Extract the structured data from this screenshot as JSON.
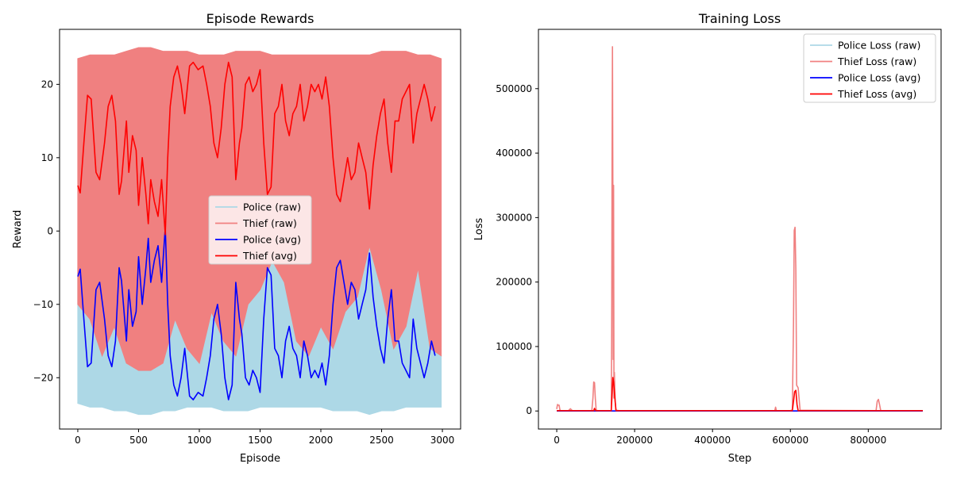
{
  "chart_data": [
    {
      "type": "line",
      "title": "Episode Rewards",
      "xlabel": "Episode",
      "ylabel": "Reward",
      "xlim": [
        -150,
        3150
      ],
      "ylim": [
        -27,
        27.5
      ],
      "xticks": [
        0,
        500,
        1000,
        1500,
        2000,
        2500,
        3000
      ],
      "yticks": [
        -20,
        -10,
        0,
        10,
        20
      ],
      "legend": {
        "placement": "center"
      },
      "series": [
        {
          "name": "Police (raw)",
          "color": "#add8e6",
          "style": "raw",
          "x": [
            0,
            100,
            200,
            300,
            400,
            500,
            600,
            700,
            800,
            900,
            1000,
            1100,
            1200,
            1300,
            1400,
            1500,
            1600,
            1700,
            1800,
            1900,
            2000,
            2100,
            2200,
            2300,
            2400,
            2500,
            2600,
            2700,
            2800,
            2900,
            2990
          ],
          "lower": [
            -23.5,
            -24,
            -24,
            -24.5,
            -24.5,
            -25,
            -25,
            -24.5,
            -24.5,
            -24,
            -24,
            -24,
            -24.5,
            -24.5,
            -24.5,
            -24,
            -24,
            -24,
            -24,
            -24,
            -24,
            -24.5,
            -24.5,
            -24.5,
            -25,
            -24.5,
            -24.5,
            -24,
            -24,
            -24,
            -24
          ],
          "upper": [
            -5,
            -12,
            -7,
            -6,
            -5,
            -3,
            -4,
            3,
            -8,
            -16,
            -18,
            -11,
            -15,
            -17,
            -10,
            -8,
            -4,
            -7,
            -15,
            -17,
            -13,
            -16,
            -11,
            -9,
            -2,
            -8,
            -16,
            -13,
            -5,
            -16,
            -17
          ]
        },
        {
          "name": "Thief (raw)",
          "color": "#f08080",
          "style": "raw",
          "x": [
            0,
            100,
            200,
            300,
            400,
            500,
            600,
            700,
            800,
            900,
            1000,
            1100,
            1200,
            1300,
            1400,
            1500,
            1600,
            1700,
            1800,
            1900,
            2000,
            2100,
            2200,
            2300,
            2400,
            2500,
            2600,
            2700,
            2800,
            2900,
            2990
          ],
          "lower": [
            -10,
            -12,
            -17,
            -13,
            -18,
            -19,
            -19,
            -18,
            -12,
            -16,
            -18,
            -11,
            -15,
            -17,
            -10,
            -8,
            -4,
            -7,
            -15,
            -17,
            -13,
            -16,
            -11,
            -9,
            -2,
            -8,
            -16,
            -13,
            -5,
            -16,
            -17
          ],
          "upper": [
            23.5,
            24,
            24,
            24,
            24.5,
            25,
            25,
            24.5,
            24.5,
            24.5,
            24,
            24,
            24,
            24.5,
            24.5,
            24.5,
            24,
            24,
            24,
            24,
            24,
            24,
            24,
            24,
            24,
            24.5,
            24.5,
            24.5,
            24,
            24,
            23.5
          ]
        },
        {
          "name": "Police (avg)",
          "color": "#0000ff",
          "style": "line",
          "x": [
            0,
            20,
            50,
            80,
            110,
            150,
            180,
            220,
            250,
            280,
            310,
            340,
            360,
            400,
            420,
            450,
            480,
            500,
            530,
            560,
            580,
            600,
            630,
            660,
            690,
            720,
            740,
            760,
            790,
            820,
            850,
            880,
            920,
            950,
            990,
            1030,
            1060,
            1090,
            1120,
            1150,
            1180,
            1210,
            1240,
            1270,
            1300,
            1330,
            1350,
            1380,
            1410,
            1440,
            1470,
            1500,
            1530,
            1560,
            1590,
            1620,
            1650,
            1680,
            1710,
            1740,
            1770,
            1800,
            1830,
            1860,
            1890,
            1920,
            1950,
            1980,
            2010,
            2040,
            2070,
            2100,
            2130,
            2160,
            2190,
            2220,
            2250,
            2280,
            2310,
            2340,
            2370,
            2400,
            2430,
            2460,
            2490,
            2520,
            2550,
            2580,
            2610,
            2640,
            2670,
            2700,
            2730,
            2760,
            2790,
            2820,
            2850,
            2880,
            2910,
            2940
          ],
          "y": [
            -6.2,
            -5.2,
            -12,
            -18.5,
            -18,
            -8,
            -7,
            -12,
            -17,
            -18.5,
            -15,
            -5,
            -6.8,
            -15,
            -8,
            -13,
            -11,
            -3.5,
            -10,
            -5,
            -1,
            -7,
            -4,
            -2,
            -7,
            0.5,
            -10,
            -17,
            -21,
            -22.5,
            -20,
            -16,
            -22.5,
            -23,
            -22,
            -22.5,
            -20,
            -17,
            -12,
            -10,
            -14,
            -20,
            -23,
            -21,
            -7,
            -12,
            -14,
            -20,
            -21,
            -19,
            -20,
            -22,
            -12,
            -5,
            -6,
            -16,
            -17,
            -20,
            -15,
            -13,
            -16,
            -17,
            -20,
            -15,
            -17,
            -20,
            -19,
            -20,
            -18,
            -21,
            -17,
            -10,
            -5,
            -4,
            -7,
            -10,
            -7,
            -8,
            -12,
            -10,
            -8,
            -3,
            -9,
            -13,
            -16,
            -18,
            -12,
            -8,
            -15,
            -15,
            -18,
            -19,
            -20,
            -12,
            -16,
            -18,
            -20,
            -18,
            -15,
            -17
          ]
        },
        {
          "name": "Thief (avg)",
          "color": "#ff0000",
          "style": "line",
          "x": [
            0,
            20,
            50,
            80,
            110,
            150,
            180,
            220,
            250,
            280,
            310,
            340,
            360,
            400,
            420,
            450,
            480,
            500,
            530,
            560,
            580,
            600,
            630,
            660,
            690,
            720,
            740,
            760,
            790,
            820,
            850,
            880,
            920,
            950,
            990,
            1030,
            1060,
            1090,
            1120,
            1150,
            1180,
            1210,
            1240,
            1270,
            1300,
            1330,
            1350,
            1380,
            1410,
            1440,
            1470,
            1500,
            1530,
            1560,
            1590,
            1620,
            1650,
            1680,
            1710,
            1740,
            1770,
            1800,
            1830,
            1860,
            1890,
            1920,
            1950,
            1980,
            2010,
            2040,
            2070,
            2100,
            2130,
            2160,
            2190,
            2220,
            2250,
            2280,
            2310,
            2340,
            2370,
            2400,
            2430,
            2460,
            2490,
            2520,
            2550,
            2580,
            2610,
            2640,
            2670,
            2700,
            2730,
            2760,
            2790,
            2820,
            2850,
            2880,
            2910,
            2940
          ],
          "y": [
            6.2,
            5.2,
            12,
            18.5,
            18,
            8,
            7,
            12,
            17,
            18.5,
            15,
            5,
            6.8,
            15,
            8,
            13,
            11,
            3.5,
            10,
            5,
            1,
            7,
            4,
            2,
            7,
            -0.5,
            10,
            17,
            21,
            22.5,
            20,
            16,
            22.5,
            23,
            22,
            22.5,
            20,
            17,
            12,
            10,
            14,
            20,
            23,
            21,
            7,
            12,
            14,
            20,
            21,
            19,
            20,
            22,
            12,
            5,
            6,
            16,
            17,
            20,
            15,
            13,
            16,
            17,
            20,
            15,
            17,
            20,
            19,
            20,
            18,
            21,
            17,
            10,
            5,
            4,
            7,
            10,
            7,
            8,
            12,
            10,
            8,
            3,
            9,
            13,
            16,
            18,
            12,
            8,
            15,
            15,
            18,
            19,
            20,
            12,
            16,
            18,
            20,
            18,
            15,
            17
          ]
        }
      ]
    },
    {
      "type": "line",
      "title": "Training Loss",
      "xlabel": "Step",
      "ylabel": "Loss",
      "xlim": [
        -47000,
        987000
      ],
      "ylim": [
        -28000,
        592000
      ],
      "xticks": [
        0,
        200000,
        400000,
        600000,
        800000
      ],
      "yticks": [
        0,
        100000,
        200000,
        300000,
        400000,
        500000
      ],
      "legend": {
        "placement": "top-right"
      },
      "series": [
        {
          "name": "Police Loss (raw)",
          "color": "#add8e6",
          "style": "line",
          "x": [
            0,
            940000
          ],
          "y": [
            0,
            0
          ]
        },
        {
          "name": "Thief Loss (raw)",
          "color": "#f08080",
          "style": "line",
          "x": [
            0,
            2000,
            4000,
            6000,
            8000,
            10000,
            30000,
            35000,
            40000,
            90000,
            93000,
            95000,
            97000,
            99000,
            101000,
            103000,
            140000,
            141000,
            142000,
            143000,
            144000,
            145000,
            146000,
            147000,
            148000,
            150000,
            152000,
            154000,
            160000,
            220000,
            560000,
            562000,
            564000,
            600000,
            605000,
            608000,
            610000,
            612000,
            614000,
            616000,
            620000,
            625000,
            820000,
            823000,
            826000,
            829000,
            832000,
            940000
          ],
          "y": [
            3000,
            10000,
            9000,
            9000,
            2000,
            500,
            500,
            3500,
            500,
            500,
            20000,
            45000,
            44000,
            20000,
            3000,
            500,
            500,
            120000,
            390000,
            565000,
            350000,
            80000,
            350000,
            20000,
            60000,
            15000,
            2000,
            1000,
            500,
            500,
            500,
            6000,
            500,
            500,
            2000,
            140000,
            280000,
            285000,
            220000,
            40000,
            36000,
            1000,
            500,
            15000,
            18000,
            10000,
            500,
            500
          ]
        },
        {
          "name": "Police Loss (avg)",
          "color": "#0000ff",
          "style": "line",
          "x": [
            0,
            940000
          ],
          "y": [
            0,
            0
          ]
        },
        {
          "name": "Thief Loss (avg)",
          "color": "#ff0000",
          "style": "line",
          "x": [
            0,
            95000,
            97000,
            100000,
            140000,
            142000,
            144000,
            146000,
            148000,
            152000,
            605000,
            608000,
            611000,
            614000,
            617000,
            620000,
            940000
          ],
          "y": [
            500,
            500,
            4000,
            500,
            500,
            25000,
            52000,
            45000,
            30000,
            500,
            500,
            15000,
            30000,
            32000,
            10000,
            500,
            500
          ]
        }
      ]
    }
  ]
}
